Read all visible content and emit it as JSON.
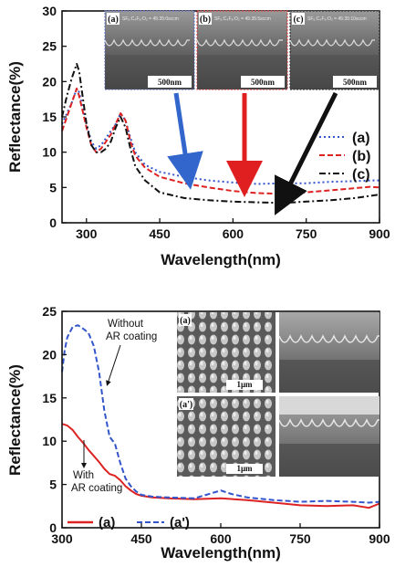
{
  "chart_data": [
    {
      "type": "line",
      "xlabel": "Wavelength(nm)",
      "ylabel": "Reflectance(%)",
      "xlim": [
        250,
        900
      ],
      "ylim": [
        0,
        30
      ],
      "xticks": [
        "300",
        "450",
        "600",
        "750",
        "900"
      ],
      "yticks": [
        "0",
        "5",
        "10",
        "15",
        "20",
        "25",
        "30"
      ],
      "legend_position": "right",
      "series": [
        {
          "name": "(a)",
          "color": "#3355cc",
          "style": "dotted",
          "x": [
            250,
            260,
            270,
            280,
            285,
            290,
            300,
            310,
            320,
            330,
            340,
            350,
            360,
            370,
            380,
            390,
            400,
            420,
            450,
            500,
            550,
            600,
            650,
            700,
            750,
            800,
            850,
            880,
            900
          ],
          "y": [
            14,
            15.5,
            17,
            19,
            18.5,
            17,
            14,
            11.5,
            10.5,
            11,
            12,
            13,
            14,
            15.5,
            14.5,
            12,
            10,
            8.2,
            7.2,
            6.5,
            6,
            5.7,
            5.5,
            5.6,
            5.6,
            5.8,
            5.9,
            6,
            6
          ]
        },
        {
          "name": "(b)",
          "color": "#dd2222",
          "style": "dashed",
          "x": [
            250,
            260,
            270,
            280,
            285,
            290,
            300,
            310,
            320,
            330,
            340,
            350,
            360,
            370,
            380,
            390,
            400,
            420,
            450,
            500,
            550,
            600,
            650,
            700,
            750,
            800,
            850,
            880,
            900
          ],
          "y": [
            13,
            15,
            17,
            19,
            18,
            16.5,
            13.5,
            11,
            10,
            10.5,
            11.5,
            12.5,
            14,
            15.5,
            14.5,
            11.5,
            9.5,
            7.8,
            6.5,
            5.6,
            5,
            4.5,
            4.2,
            4.1,
            4.3,
            4.6,
            4.9,
            5.1,
            5
          ]
        },
        {
          "name": "(c)",
          "color": "#111111",
          "style": "dashdot",
          "x": [
            250,
            260,
            270,
            280,
            285,
            290,
            300,
            310,
            320,
            330,
            340,
            350,
            360,
            370,
            380,
            390,
            400,
            420,
            450,
            500,
            550,
            600,
            650,
            700,
            750,
            800,
            850,
            880,
            900
          ],
          "y": [
            15,
            18,
            20.5,
            22.5,
            21.5,
            19,
            14,
            11,
            10,
            10,
            10.5,
            11.5,
            13.5,
            15,
            13.5,
            10.5,
            8,
            6,
            4.3,
            3.5,
            3.2,
            3,
            2.9,
            2.8,
            3,
            3.2,
            3.5,
            3.8,
            4
          ]
        }
      ],
      "insets": [
        {
          "label": "(a)",
          "condition": "SF₆:C₄F₈:O₂ = 45:35:0sccm",
          "scale": "500nm"
        },
        {
          "label": "(b)",
          "condition": "SF₆:C₄F₈:O₂ = 45:35:5sccm",
          "scale": "500nm"
        },
        {
          "label": "(c)",
          "condition": "SF₆:C₄F₈:O₂ = 45:35:10sccm",
          "scale": "500nm"
        }
      ]
    },
    {
      "type": "line",
      "xlabel": "Wavelength(nm)",
      "ylabel": "Reflectance(%)",
      "xlim": [
        300,
        900
      ],
      "ylim": [
        0,
        25
      ],
      "xticks": [
        "300",
        "450",
        "600",
        "750",
        "900"
      ],
      "yticks": [
        "0",
        "5",
        "10",
        "15",
        "20",
        "25"
      ],
      "legend_position": "bottom",
      "series": [
        {
          "name": "(a)",
          "color": "#dd2222",
          "style": "solid",
          "x": [
            300,
            310,
            320,
            330,
            340,
            350,
            360,
            370,
            380,
            390,
            400,
            410,
            420,
            430,
            440,
            450,
            470,
            500,
            550,
            600,
            650,
            700,
            750,
            800,
            850,
            880,
            900
          ],
          "y": [
            12,
            11.8,
            11.3,
            10.5,
            9.8,
            9,
            8.3,
            7.6,
            6.8,
            6.2,
            6,
            5.5,
            4.8,
            4.3,
            3.9,
            3.7,
            3.5,
            3.4,
            3.3,
            3.4,
            3.2,
            2.9,
            2.6,
            2.5,
            2.6,
            2.3,
            2.8
          ]
        },
        {
          "name": "(a')",
          "color": "#3355cc",
          "style": "dashed",
          "x": [
            300,
            305,
            310,
            320,
            330,
            340,
            350,
            360,
            370,
            380,
            390,
            400,
            410,
            420,
            430,
            440,
            450,
            470,
            500,
            550,
            600,
            620,
            650,
            700,
            750,
            800,
            850,
            880,
            900
          ],
          "y": [
            18,
            20.5,
            22,
            23.2,
            23.4,
            23,
            22.5,
            21,
            18,
            13.5,
            10.5,
            9.7,
            7.5,
            5.7,
            4.8,
            4.2,
            3.8,
            3.6,
            3.5,
            3.4,
            4.3,
            3.9,
            3.5,
            3.2,
            3,
            3.1,
            3,
            2.9,
            3
          ]
        }
      ],
      "annotations": [
        {
          "text": "Without",
          "series": "(a')"
        },
        {
          "text": "AR coating",
          "series": "(a')"
        },
        {
          "text": "With",
          "series": "(a)"
        },
        {
          "text": "AR coating",
          "series": "(a)"
        }
      ],
      "insets": [
        {
          "label": "(a)",
          "scale": "1μm"
        },
        {
          "label": "(a')",
          "scale": "1μm"
        }
      ]
    }
  ]
}
